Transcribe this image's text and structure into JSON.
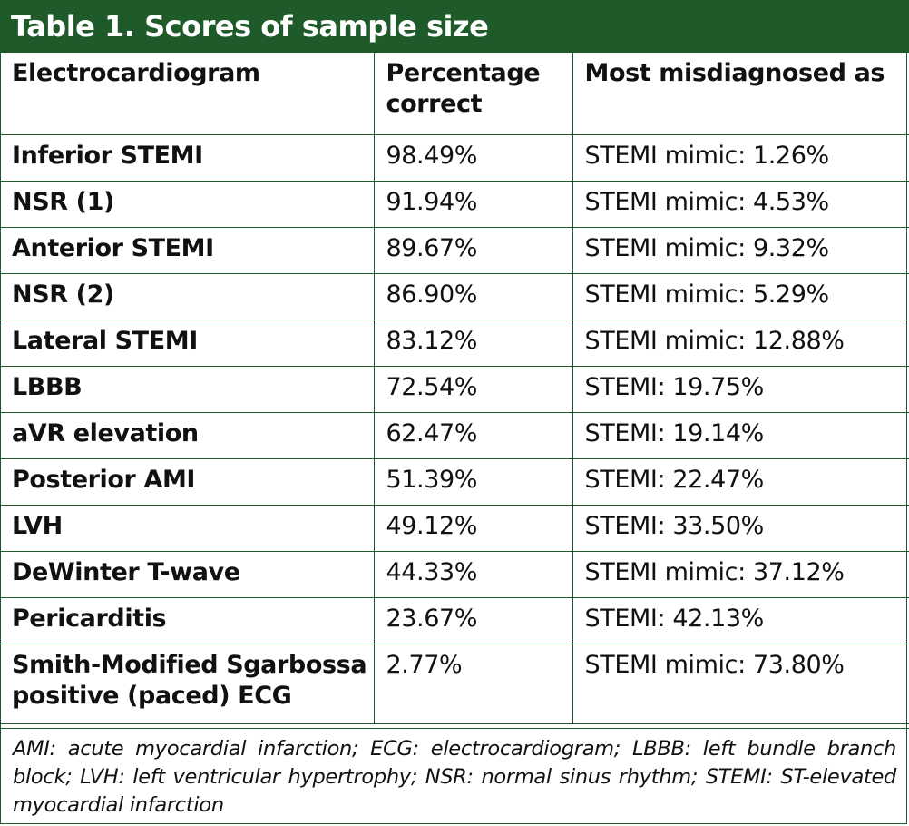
{
  "title": "Table 1. Scores of sample size",
  "columns": [
    "Electrocardiogram",
    "Percentage correct",
    "Most misdiagnosed as"
  ],
  "rows": [
    {
      "ecg": "Inferior STEMI",
      "pct": "98.49%",
      "mis": "STEMI mimic: 1.26%"
    },
    {
      "ecg": "NSR (1)",
      "pct": "91.94%",
      "mis": "STEMI mimic: 4.53%"
    },
    {
      "ecg": "Anterior STEMI",
      "pct": "89.67%",
      "mis": "STEMI mimic: 9.32%"
    },
    {
      "ecg": "NSR (2)",
      "pct": "86.90%",
      "mis": "STEMI mimic: 5.29%"
    },
    {
      "ecg": "Lateral STEMI",
      "pct": "83.12%",
      "mis": "STEMI mimic: 12.88%"
    },
    {
      "ecg": "LBBB",
      "pct": "72.54%",
      "mis": "STEMI: 19.75%"
    },
    {
      "ecg": "aVR elevation",
      "pct": "62.47%",
      "mis": "STEMI: 19.14%"
    },
    {
      "ecg": "Posterior AMI",
      "pct": "51.39%",
      "mis": "STEMI: 22.47%"
    },
    {
      "ecg": "LVH",
      "pct": "49.12%",
      "mis": "STEMI: 33.50%"
    },
    {
      "ecg": "DeWinter T-wave",
      "pct": "44.33%",
      "mis": "STEMI mimic: 37.12%"
    },
    {
      "ecg": "Pericarditis",
      "pct": "23.67%",
      "mis": "STEMI: 42.13%"
    },
    {
      "ecg": "Smith-Modified Sgarbossa positive (paced) ECG",
      "pct": "2.77%",
      "mis": "STEMI mimic: 73.80%"
    }
  ],
  "footnote": "AMI: acute myocardial infarction; ECG: electrocardiogram; LBBB: left bundle branch block; LVH: left ventricular hypertrophy; NSR: normal sinus rhythm; STEMI: ST-elevated myocardial infarction",
  "colors": {
    "accent": "#1e5a2a",
    "text": "#111111",
    "background": "#ffffff"
  }
}
